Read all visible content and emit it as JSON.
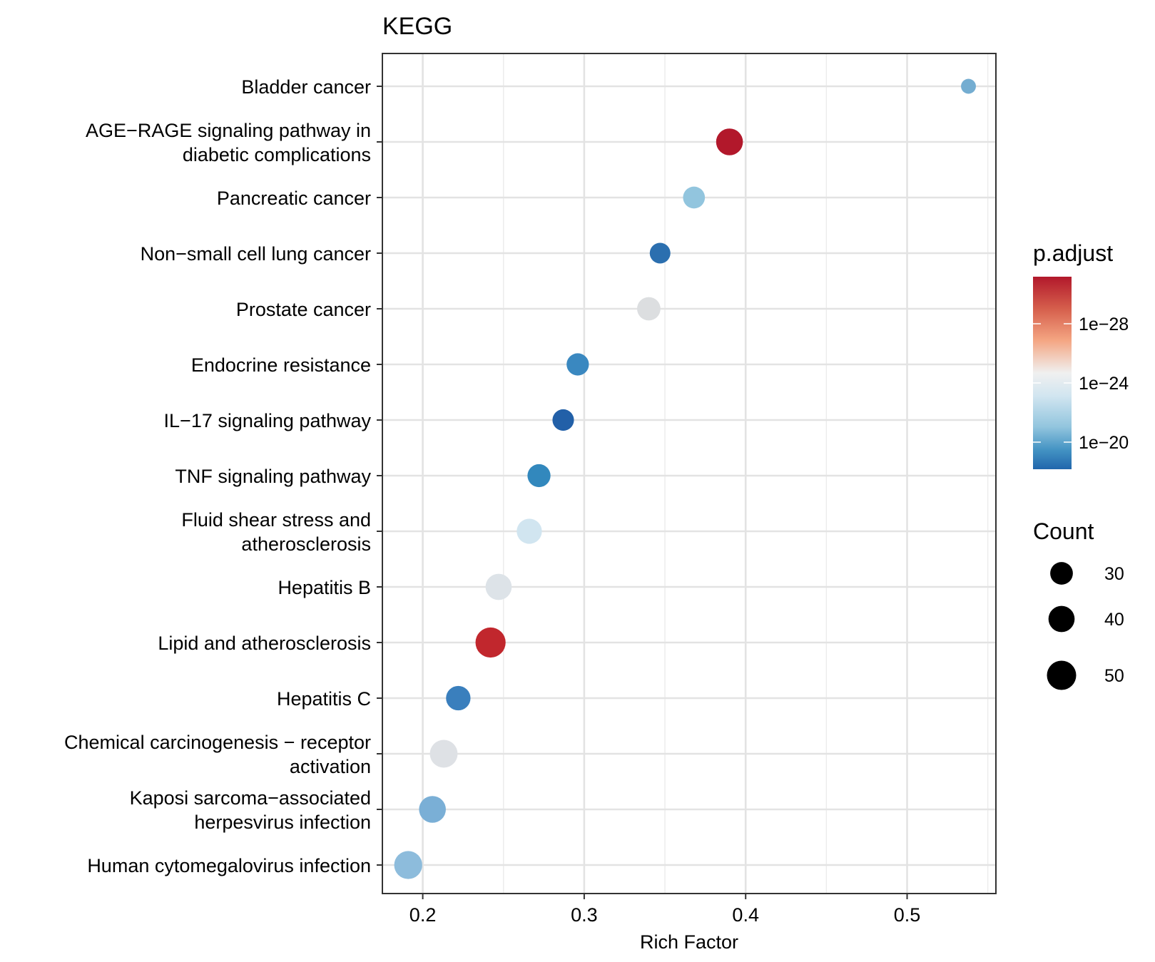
{
  "chart_data": {
    "type": "scatter",
    "title": "KEGG",
    "xlabel": "Rich Factor",
    "ylabel": "",
    "xlim": [
      0.175,
      0.555
    ],
    "xticks": [
      "0.2",
      "0.3",
      "0.4",
      "0.5"
    ],
    "xtick_values": [
      0.2,
      0.3,
      0.4,
      0.5
    ],
    "grid": true,
    "points": [
      {
        "label": [
          "Bladder cancer"
        ],
        "x": 0.538,
        "count": 13,
        "color": "#74add1"
      },
      {
        "label": [
          "AGE−RAGE signaling pathway in",
          "diabetic complications"
        ],
        "x": 0.39,
        "count": 42,
        "color": "#b2182b"
      },
      {
        "label": [
          "Pancreatic cancer"
        ],
        "x": 0.368,
        "count": 28,
        "color": "#92c5de"
      },
      {
        "label": [
          "Non−small cell lung cancer"
        ],
        "x": 0.347,
        "count": 25,
        "color": "#2b6faf"
      },
      {
        "label": [
          "Prostate cancer"
        ],
        "x": 0.34,
        "count": 32,
        "color": "#dcdee0"
      },
      {
        "label": [
          "Endocrine resistance"
        ],
        "x": 0.296,
        "count": 29,
        "color": "#3a88c0"
      },
      {
        "label": [
          "IL−17 signaling pathway"
        ],
        "x": 0.287,
        "count": 27,
        "color": "#2260a8"
      },
      {
        "label": [
          "TNF signaling pathway"
        ],
        "x": 0.272,
        "count": 31,
        "color": "#3288bd"
      },
      {
        "label": [
          "Fluid shear stress and",
          "atherosclerosis"
        ],
        "x": 0.266,
        "count": 37,
        "color": "#d1e5f0"
      },
      {
        "label": [
          "Hepatitis B"
        ],
        "x": 0.247,
        "count": 40,
        "color": "#dde3e8"
      },
      {
        "label": [
          "Lipid and atherosclerosis"
        ],
        "x": 0.242,
        "count": 53,
        "color": "#c1272d"
      },
      {
        "label": [
          "Hepatitis C"
        ],
        "x": 0.222,
        "count": 35,
        "color": "#3a7fbd"
      },
      {
        "label": [
          "Chemical carcinogenesis − receptor",
          "activation"
        ],
        "x": 0.213,
        "count": 45,
        "color": "#dee1e5"
      },
      {
        "label": [
          "Kaposi sarcoma−associated",
          "herpesvirus infection"
        ],
        "x": 0.206,
        "count": 42,
        "color": "#7aafd6"
      },
      {
        "label": [
          "Human cytomegalovirus infection"
        ],
        "x": 0.191,
        "count": 46,
        "color": "#8dbcdc"
      }
    ],
    "legend_color": {
      "title": "p.adjust",
      "ticks": [
        "1e−28",
        "1e−24",
        "1e−20"
      ],
      "scale": "log",
      "colors": [
        "#b2182b",
        "#f4a582",
        "#f7f7f7",
        "#d1e5f0",
        "#92c5de",
        "#2166ac"
      ],
      "placement": "right"
    },
    "legend_size": {
      "title": "Count",
      "entries": [
        30,
        40,
        50
      ],
      "labels": [
        "30",
        "40",
        "50"
      ],
      "placement": "right"
    }
  }
}
